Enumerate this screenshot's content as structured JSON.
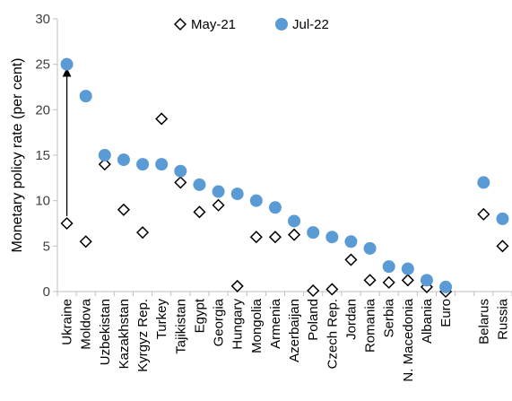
{
  "chart_data": {
    "type": "scatter",
    "title": "",
    "xlabel": "",
    "ylabel": "Monetary policy rate (per cent)",
    "ylim": [
      0,
      30
    ],
    "yticks": [
      0,
      5,
      10,
      15,
      20,
      25,
      30
    ],
    "grid": false,
    "legend_position": "top-center",
    "categories": [
      "Ukraine",
      "Moldova",
      "Uzbekistan",
      "Kazakhstan",
      "Kyrgyz Rep.",
      "Turkey",
      "Tajikistan",
      "Egypt",
      "Georgia",
      "Hungary",
      "Mongolia",
      "Armenia",
      "Azerbaijan",
      "Poland",
      "Czech Rep.",
      "Jordan",
      "Romania",
      "Serbia",
      "N. Macedonia",
      "Albania",
      "Euro",
      "",
      "Belarus",
      "Russia"
    ],
    "series": [
      {
        "name": "May-21",
        "marker": "diamond",
        "color": "#000000",
        "values": [
          7.5,
          5.5,
          14,
          9,
          6.5,
          19,
          12,
          8.75,
          9.5,
          0.6,
          6,
          6,
          6.25,
          0.1,
          0.25,
          3.5,
          1.25,
          1,
          1.25,
          0.5,
          0,
          null,
          8.5,
          5
        ]
      },
      {
        "name": "Jul-22",
        "marker": "circle",
        "color": "#5B9BD5",
        "values": [
          25,
          21.5,
          15,
          14.5,
          14,
          14,
          13.25,
          11.75,
          11,
          10.75,
          10,
          9.25,
          7.75,
          6.5,
          6,
          5.5,
          4.75,
          2.75,
          2.5,
          1.25,
          0.5,
          null,
          12,
          8
        ]
      }
    ],
    "annotations": [
      {
        "type": "arrow",
        "category": "Ukraine",
        "from": 7.5,
        "to": 25
      }
    ]
  }
}
